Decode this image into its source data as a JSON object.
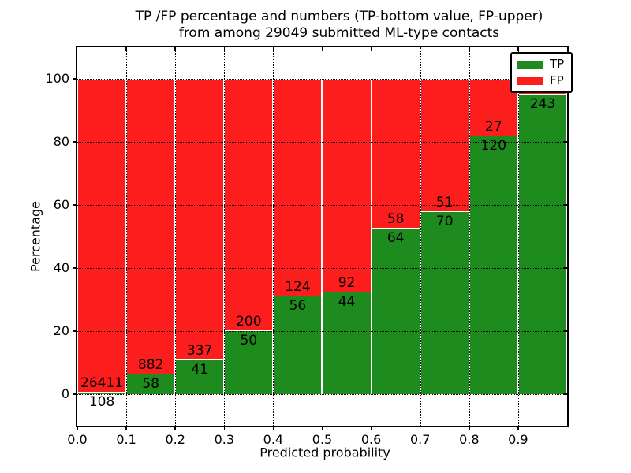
{
  "title": {
    "line1": "TP /FP percentage and numbers (TP-bottom value, FP-upper)",
    "line2": "from among 29049 submitted ML-type contacts"
  },
  "axes": {
    "xlabel": "Predicted probability",
    "ylabel": "Percentage"
  },
  "legend": {
    "position": "upper right",
    "items": [
      {
        "label": "TP",
        "color": "#1e8b1e"
      },
      {
        "label": "FP",
        "color": "#fc1d1d"
      }
    ]
  },
  "colors": {
    "tp": "#1e8b1e",
    "fp": "#fc1d1d",
    "grid": "#000000",
    "frame": "#000000",
    "background": "#ffffff"
  },
  "chart_data": {
    "type": "bar",
    "stacked": true,
    "normalized_to_100_percent": true,
    "title": "TP /FP percentage and numbers (TP-bottom value, FP-upper) from among 29049 submitted ML-type contacts",
    "xlabel": "Predicted probability",
    "ylabel": "Percentage",
    "xlim": [
      0.0,
      1.0
    ],
    "ylim": [
      -10,
      110
    ],
    "grid": true,
    "legend_position": "upper right",
    "total_submitted": 29049,
    "bin_width": 0.1,
    "bins": [
      "0.0-0.1",
      "0.1-0.2",
      "0.2-0.3",
      "0.3-0.4",
      "0.4-0.5",
      "0.5-0.6",
      "0.6-0.7",
      "0.7-0.8",
      "0.8-0.9",
      "0.9-1.0"
    ],
    "x_tick_labels": [
      "0.0",
      "0.1",
      "0.2",
      "0.3",
      "0.4",
      "0.5",
      "0.6",
      "0.7",
      "0.8",
      "0.9"
    ],
    "y_tick_labels": [
      "0",
      "20",
      "40",
      "60",
      "80",
      "100"
    ],
    "y_tick_values": [
      0,
      20,
      40,
      60,
      80,
      100
    ],
    "series": [
      {
        "name": "TP",
        "color": "#1e8b1e",
        "counts": [
          108,
          58,
          41,
          50,
          56,
          44,
          64,
          70,
          120,
          243
        ]
      },
      {
        "name": "FP",
        "color": "#fc1d1d",
        "counts": [
          26411,
          882,
          337,
          200,
          124,
          92,
          58,
          51,
          27,
          null
        ]
      }
    ],
    "tp_percent": [
      0.41,
      6.17,
      10.85,
      20.0,
      31.11,
      32.35,
      52.46,
      57.85,
      81.63,
      94.9
    ]
  }
}
